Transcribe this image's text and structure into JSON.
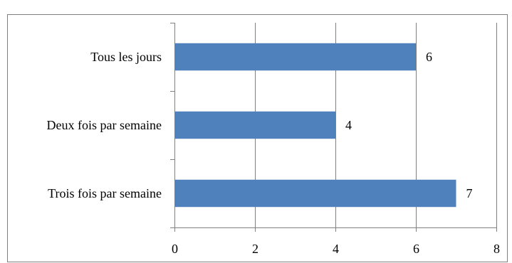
{
  "chart_data": {
    "type": "bar",
    "orientation": "horizontal",
    "title": "",
    "xlabel": "",
    "ylabel": "",
    "categories": [
      "Tous les jours",
      "Deux fois par semaine",
      "Trois fois par semaine"
    ],
    "values": [
      6,
      4,
      7
    ],
    "data_labels": [
      "6",
      "4",
      "7"
    ],
    "xlim": [
      0,
      8
    ],
    "x_ticks": [
      "0",
      "2",
      "4",
      "6",
      "8"
    ],
    "grid": "vertical",
    "legend": "none",
    "bar_color": "#4f81bd"
  }
}
